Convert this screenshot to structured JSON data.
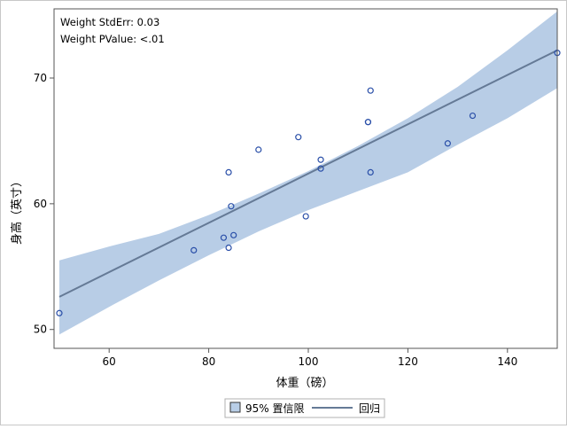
{
  "chart_data": {
    "type": "scatter",
    "xlabel": "体重（磅）",
    "ylabel": "身高（英寸）",
    "xlim": [
      50,
      150
    ],
    "ylim": [
      50,
      75
    ],
    "x_ticks": [
      60,
      80,
      100,
      120,
      140
    ],
    "y_ticks": [
      50,
      60,
      70
    ],
    "grid": false,
    "annotations": [
      "Weight StdErr: 0.03",
      "Weight PValue: <.01"
    ],
    "legend": {
      "position": "bottom",
      "items": [
        {
          "label": "95% 置信限",
          "kind": "band",
          "color": "#b8cde6"
        },
        {
          "label": "回归",
          "kind": "line",
          "color": "#657a96"
        }
      ]
    },
    "colors": {
      "points": "#2a4fa8",
      "band": "#b8cde6",
      "line": "#657a96"
    },
    "points": [
      {
        "x": 50,
        "y": 51.3
      },
      {
        "x": 77,
        "y": 56.3
      },
      {
        "x": 83,
        "y": 57.3
      },
      {
        "x": 84,
        "y": 56.5
      },
      {
        "x": 84,
        "y": 62.5
      },
      {
        "x": 84.5,
        "y": 59.8
      },
      {
        "x": 85,
        "y": 57.5
      },
      {
        "x": 90,
        "y": 64.3
      },
      {
        "x": 98,
        "y": 65.3
      },
      {
        "x": 99.5,
        "y": 59.0
      },
      {
        "x": 102.5,
        "y": 62.8
      },
      {
        "x": 102.5,
        "y": 63.5
      },
      {
        "x": 112,
        "y": 66.5
      },
      {
        "x": 112,
        "y": 66.5
      },
      {
        "x": 112.5,
        "y": 62.5
      },
      {
        "x": 112.5,
        "y": 69.0
      },
      {
        "x": 128,
        "y": 64.8
      },
      {
        "x": 133,
        "y": 67.0
      },
      {
        "x": 150,
        "y": 72.0
      }
    ],
    "regression": {
      "x": [
        50,
        150
      ],
      "y": [
        52.6,
        72.2
      ]
    },
    "confidence_band": {
      "x": [
        50,
        60,
        70,
        80,
        90,
        100,
        110,
        120,
        130,
        140,
        150
      ],
      "lower": [
        49.6,
        51.8,
        53.9,
        55.9,
        57.8,
        59.5,
        61.0,
        62.5,
        64.7,
        66.8,
        69.2
      ],
      "upper": [
        55.5,
        56.6,
        57.6,
        59.1,
        60.8,
        62.6,
        64.6,
        66.8,
        69.3,
        72.2,
        75.3
      ]
    }
  }
}
